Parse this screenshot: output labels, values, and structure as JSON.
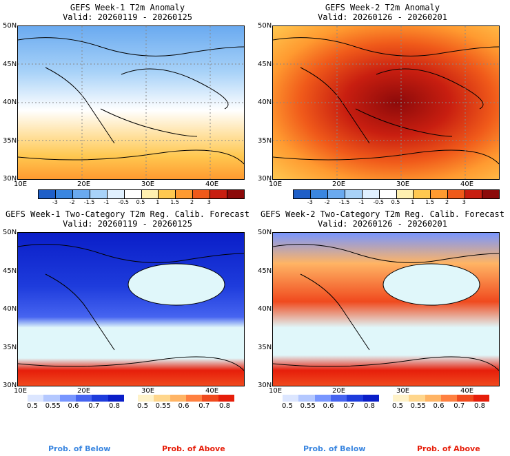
{
  "panels": [
    {
      "title": "GEFS Week-1 T2m Anomaly",
      "valid": "Valid: 20260119 - 20260125"
    },
    {
      "title": "GEFS Week-2 T2m Anomaly",
      "valid": "Valid: 20260126 - 20260201"
    },
    {
      "title": "GEFS Week-1 Two-Category T2m Reg. Calib. Forecast",
      "valid": "Valid: 20260119 - 20260125"
    },
    {
      "title": "GEFS Week-2 Two-Category T2m Reg. Calib. Forecast",
      "valid": "Valid: 20260126 - 20260201"
    }
  ],
  "lat_labels": [
    "50N",
    "45N",
    "40N",
    "35N",
    "30N"
  ],
  "lon_labels": [
    "10E",
    "20E",
    "30E",
    "40E"
  ],
  "anomaly_ticks": [
    "-3",
    "-2",
    "-1.5",
    "-1",
    "-0.5",
    "0.5",
    "1",
    "1.5",
    "2",
    "3"
  ],
  "anomaly_colors": [
    "#1f5fc8",
    "#3a86e0",
    "#6aaaf0",
    "#a8d2f8",
    "#e0f0ff",
    "#ffffff",
    "#fff0b0",
    "#ffc850",
    "#ff9a30",
    "#f05a1a",
    "#c81e10",
    "#8c0a0a"
  ],
  "prob_below_ticks": [
    "0.5",
    "0.55",
    "0.6",
    "0.7",
    "0.8"
  ],
  "prob_above_ticks": [
    "0.5",
    "0.55",
    "0.6",
    "0.7",
    "0.8"
  ],
  "prob_below_colors": [
    "#dce6ff",
    "#b4c8ff",
    "#7896ff",
    "#4664f0",
    "#1e3cdc",
    "#0a1ec8"
  ],
  "prob_above_colors": [
    "#fff2c8",
    "#ffd68c",
    "#ffb464",
    "#ff8040",
    "#f04a1e",
    "#e61e0a"
  ],
  "prob_below_label": "Prob. of Below",
  "prob_above_label": "Prob. of Above"
}
